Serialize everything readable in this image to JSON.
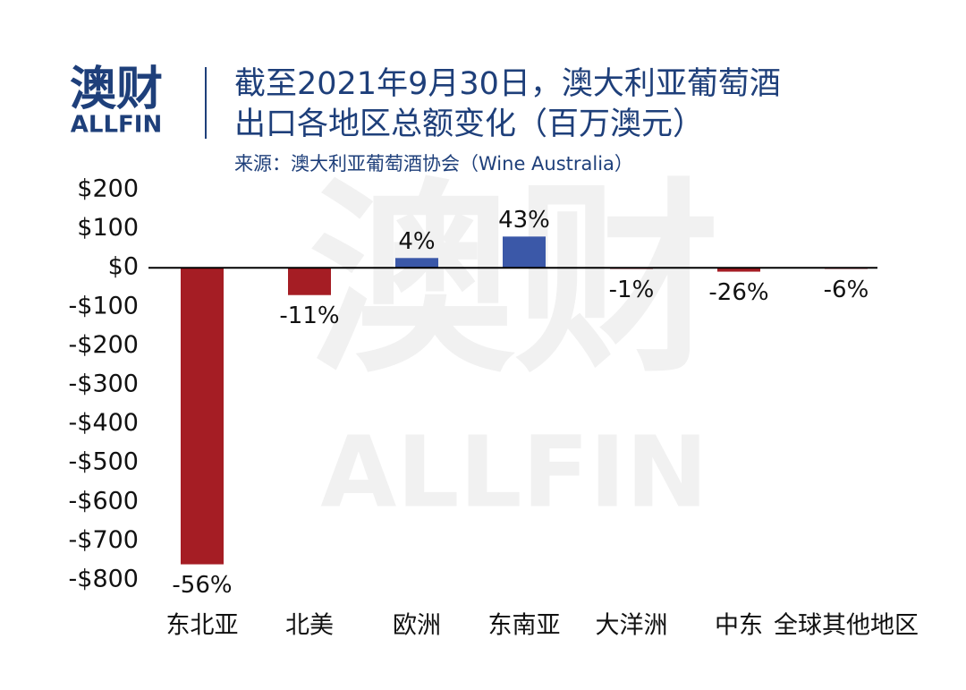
{
  "logo": {
    "name": "澳财",
    "brand": "ALLFIN"
  },
  "chart_data": {
    "type": "bar",
    "title": [
      "截至2021年9月30日，澳大利亚葡萄酒",
      "出口各地区总额变化（百万澳元）"
    ],
    "subtitle": "来源：澳大利亚葡萄酒协会（Wine Australia）",
    "categories": [
      "东北亚",
      "北美",
      "欧洲",
      "东南亚",
      "大洋洲",
      "中东",
      "全球其他地区"
    ],
    "values": [
      -760,
      -70,
      25,
      80,
      -3,
      -10,
      -3
    ],
    "change_labels": [
      "-56%",
      "-11%",
      "4%",
      "43%",
      "-1%",
      "-26%",
      "-6%"
    ],
    "positive_color": "#3b58a8",
    "negative_color": "#a51d24",
    "ylim": [
      -800,
      200
    ],
    "yticks": [
      {
        "value": 200,
        "label": "$200"
      },
      {
        "value": 100,
        "label": "$100"
      },
      {
        "value": 0,
        "label": "$0"
      },
      {
        "value": -100,
        "label": "-$100"
      },
      {
        "value": -200,
        "label": "-$200"
      },
      {
        "value": -300,
        "label": "-$300"
      },
      {
        "value": -400,
        "label": "-$400"
      },
      {
        "value": -500,
        "label": "-$500"
      },
      {
        "value": -600,
        "label": "-$600"
      },
      {
        "value": -700,
        "label": "-$700"
      },
      {
        "value": -800,
        "label": "-$800"
      }
    ]
  }
}
